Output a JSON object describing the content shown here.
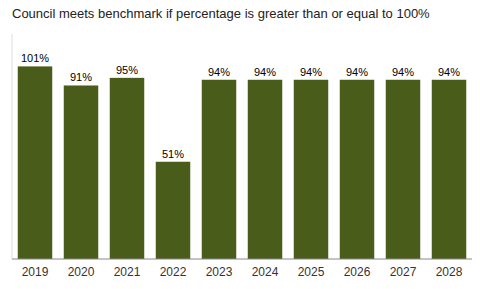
{
  "chart_data": {
    "type": "bar",
    "title": "Council meets benchmark if percentage is greater than or equal to 100%",
    "categories": [
      "2019",
      "2020",
      "2021",
      "2022",
      "2023",
      "2024",
      "2025",
      "2026",
      "2027",
      "2028"
    ],
    "values": [
      101,
      91,
      95,
      51,
      94,
      94,
      94,
      94,
      94,
      94
    ],
    "value_labels": [
      "101%",
      "91%",
      "95%",
      "51%",
      "94%",
      "94%",
      "94%",
      "94%",
      "94%",
      "94%"
    ],
    "color": "#4a5c1a",
    "ylim": [
      0,
      118
    ],
    "grid": false,
    "data_labels": true,
    "tick_labels": "x"
  }
}
